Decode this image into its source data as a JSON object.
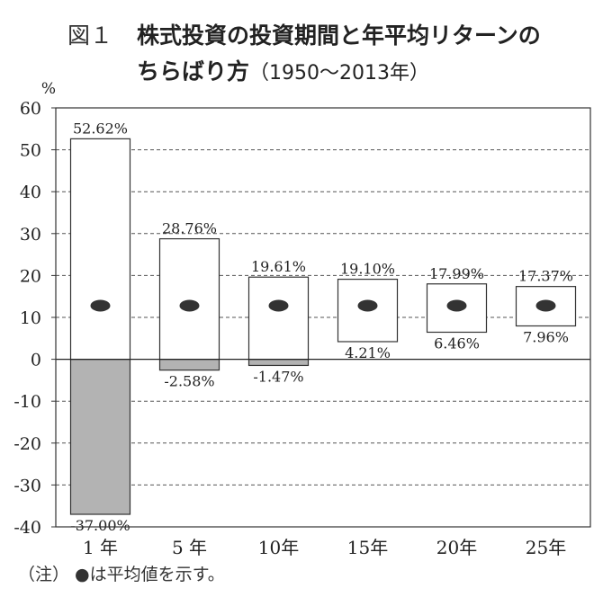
{
  "figure_label": "図１",
  "title_line1": "株式投資の投資期間と年平均リターンの",
  "title_line2_main": "ちらばり方",
  "title_line2_sub": "（1950〜2013年）",
  "note": "（注）  ●は平均値を示す。",
  "chart_data": {
    "type": "floating-bar",
    "ylabel": "%",
    "ylim": [
      -40,
      60
    ],
    "yticks": [
      -40,
      -30,
      -20,
      -10,
      0,
      10,
      20,
      30,
      40,
      50,
      60
    ],
    "grid": true,
    "categories": [
      "1 年",
      "5 年",
      "10年",
      "15年",
      "20年",
      "25年"
    ],
    "max": [
      52.62,
      28.76,
      19.61,
      19.1,
      17.99,
      17.37
    ],
    "min": [
      -37.0,
      -2.58,
      -1.47,
      4.21,
      6.46,
      7.96
    ],
    "max_labels": [
      "52.62%",
      "28.76%",
      "19.61%",
      "19.10%",
      "17.99%",
      "17.37%"
    ],
    "min_labels": [
      "-37.00%",
      "-2.58%",
      "-1.47%",
      "4.21%",
      "6.46%",
      "7.96%"
    ],
    "mean_marker_value": 12.8,
    "colors": {
      "negative_fill": "#b3b3b3",
      "positive_fill": "#ffffff",
      "marker": "#333333"
    }
  }
}
